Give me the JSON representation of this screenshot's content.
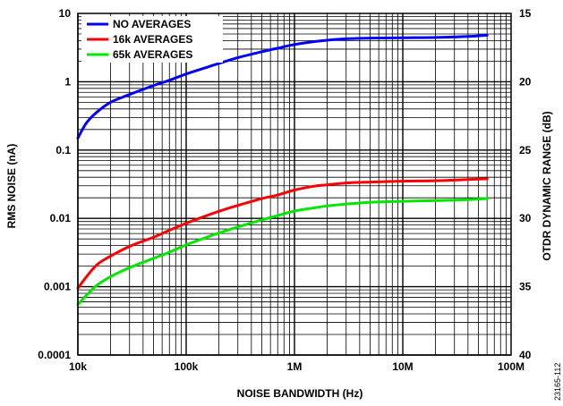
{
  "chart_data": {
    "type": "line",
    "xlabel": "NOISE BANDWIDTH (Hz)",
    "ylabel": "RMS NOISE (nA)",
    "y2label": "OTDR DYNAMIC RANGE (dB)",
    "x_scale": "log",
    "y_scale": "log",
    "xlim": [
      10000,
      100000000
    ],
    "ylim": [
      0.0001,
      10
    ],
    "y2lim": [
      15,
      40
    ],
    "grid": true,
    "legend_position": "top-left",
    "x_tick_values": [
      10000,
      100000,
      1000000,
      10000000,
      100000000
    ],
    "x_tick_labels": [
      "10k",
      "100k",
      "1M",
      "10M",
      "100M"
    ],
    "y_tick_values": [
      0.0001,
      0.001,
      0.01,
      0.1,
      1,
      10
    ],
    "y_tick_labels": [
      "0.0001",
      "0.001",
      "0.01",
      "0.1",
      "1",
      "10"
    ],
    "y2_tick_values": [
      15,
      20,
      25,
      30,
      35,
      40
    ],
    "y2_tick_labels": [
      "15",
      "20",
      "25",
      "30",
      "35",
      "40"
    ],
    "series": [
      {
        "name": "NO AVERAGES",
        "color": "#0000ff",
        "x": [
          10000,
          12000,
          15000,
          20000,
          30000,
          50000,
          70000,
          100000,
          150000,
          200000,
          300000,
          500000,
          700000,
          1000000,
          1500000,
          2000000,
          3000000,
          5000000,
          10000000,
          20000000,
          40000000,
          60000000
        ],
        "y": [
          0.15,
          0.25,
          0.36,
          0.5,
          0.65,
          0.88,
          1.05,
          1.3,
          1.6,
          1.85,
          2.25,
          2.75,
          3.1,
          3.5,
          3.85,
          4.05,
          4.25,
          4.35,
          4.4,
          4.45,
          4.6,
          4.8
        ]
      },
      {
        "name": "16k AVERAGES",
        "color": "#ff0000",
        "x": [
          10000,
          12000,
          15000,
          20000,
          30000,
          50000,
          70000,
          100000,
          150000,
          200000,
          300000,
          500000,
          700000,
          1000000,
          1500000,
          2000000,
          3000000,
          5000000,
          10000000,
          20000000,
          40000000,
          60000000
        ],
        "y": [
          0.00095,
          0.0014,
          0.0021,
          0.0028,
          0.0039,
          0.0053,
          0.0067,
          0.0085,
          0.0108,
          0.0127,
          0.0155,
          0.0195,
          0.022,
          0.026,
          0.0295,
          0.031,
          0.033,
          0.034,
          0.035,
          0.0355,
          0.037,
          0.038
        ]
      },
      {
        "name": "65k AVERAGES",
        "color": "#00e800",
        "x": [
          10000,
          12000,
          15000,
          20000,
          30000,
          50000,
          70000,
          100000,
          150000,
          200000,
          300000,
          500000,
          700000,
          1000000,
          1500000,
          2000000,
          3000000,
          5000000,
          10000000,
          20000000,
          40000000,
          60000000
        ],
        "y": [
          0.00055,
          0.00075,
          0.00105,
          0.0014,
          0.0019,
          0.0026,
          0.0032,
          0.0041,
          0.0052,
          0.0061,
          0.0075,
          0.0095,
          0.011,
          0.0128,
          0.0142,
          0.0152,
          0.0162,
          0.0172,
          0.0178,
          0.0182,
          0.0188,
          0.0195
        ]
      }
    ]
  },
  "figure_id": "23165-112"
}
